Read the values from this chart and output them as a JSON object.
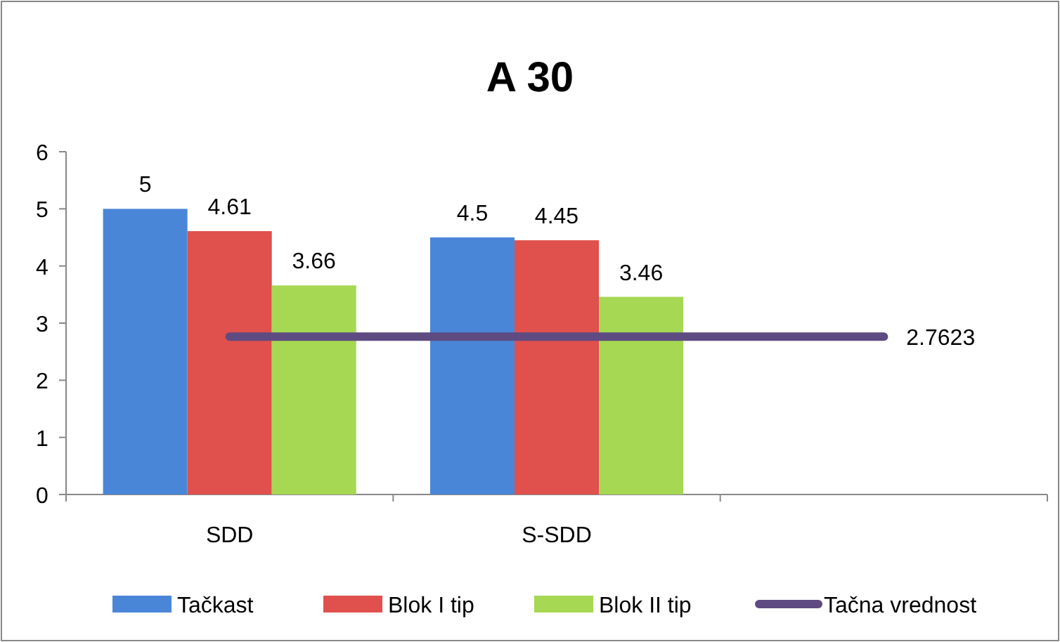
{
  "chart_data": {
    "type": "bar",
    "title": "A 30",
    "categories": [
      "SDD",
      "S-SDD",
      null
    ],
    "series": [
      {
        "name": "Tačkast",
        "color": "#4a86d8",
        "values": [
          5,
          4.5,
          null
        ],
        "value_labels": [
          "5",
          "4.5",
          null
        ]
      },
      {
        "name": "Blok I tip",
        "color": "#e0504c",
        "values": [
          4.61,
          4.45,
          null
        ],
        "value_labels": [
          "4.61",
          "4.45",
          null
        ]
      },
      {
        "name": "Blok II tip",
        "color": "#a6d854",
        "values": [
          3.66,
          3.46,
          null
        ],
        "value_labels": [
          "3.66",
          "3.46",
          null
        ]
      },
      {
        "name": "Tačna vrednost",
        "type": "line",
        "color": "#5e4b82",
        "values": [
          2.7623,
          2.7623,
          2.7623
        ],
        "value_labels": [
          null,
          null,
          "2.7623"
        ]
      }
    ],
    "ylim": [
      0,
      6
    ],
    "yticks": [
      0,
      1,
      2,
      3,
      4,
      5,
      6
    ],
    "grid": false,
    "legend": "bottom",
    "marker": "none",
    "line_style": "solid"
  }
}
